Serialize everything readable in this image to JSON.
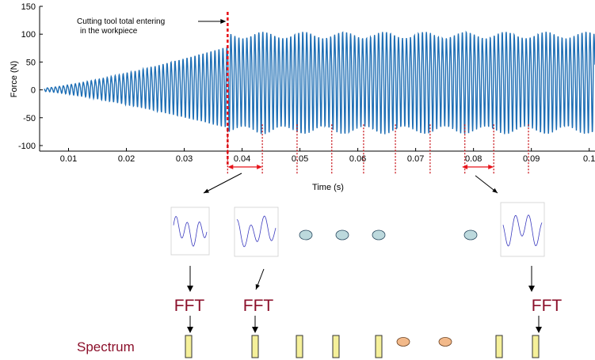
{
  "chart_data": {
    "type": "line",
    "title": "",
    "xlabel": "Time (s)",
    "ylabel": "Force (N)",
    "xlim": [
      0.005,
      0.101
    ],
    "ylim": [
      -110,
      150
    ],
    "xticks": [
      0.01,
      0.02,
      0.03,
      0.04,
      0.05,
      0.06,
      0.07,
      0.08,
      0.09,
      0.1
    ],
    "xtick_labels": [
      "0.01",
      "0.02",
      "0.03",
      "0.04",
      "0.05",
      "0.06",
      "0.07",
      "0.08",
      "0.09",
      "0.1"
    ],
    "yticks": [
      150,
      100,
      50,
      0,
      -50,
      -100
    ],
    "ytick_labels": [
      "150",
      "100",
      "50",
      "0",
      "-50",
      "-100"
    ],
    "grid": false,
    "series": [
      {
        "color": "#1f6fb5",
        "description_values": {
          "frequency_cycles_per_s": 1450,
          "ramp_start_x": 0.006,
          "ramp_end_x": 0.0375,
          "ramp_end_peak": 70,
          "steady_peak_range": [
            90,
            108
          ],
          "steady_trough_range": [
            -55,
            -68
          ]
        }
      }
    ],
    "annotations": {
      "entry_text_line1": "Cutting tool total entering",
      "entry_text_line2": "in the workpiece",
      "entry_x": 0.0375,
      "window_lines_x": [
        0.0375,
        0.0435,
        0.0495,
        0.0555,
        0.061,
        0.0665,
        0.0725,
        0.0785,
        0.0835,
        0.0895
      ],
      "window_arrows": [
        [
          0.0375,
          0.0435
        ],
        [
          0.078,
          0.0835
        ]
      ]
    }
  },
  "diagram": {
    "fft_label": "FFT",
    "spectrum_label": "Spectrum",
    "thumb_colors": {
      "frame": "#cfcfcf",
      "line": "#3b3bbf"
    },
    "ellipse_color_top": "#bcd9dd",
    "ellipse_color_bottom": "#f2b98a",
    "spectrum_bar_color": "#f5f09a"
  }
}
